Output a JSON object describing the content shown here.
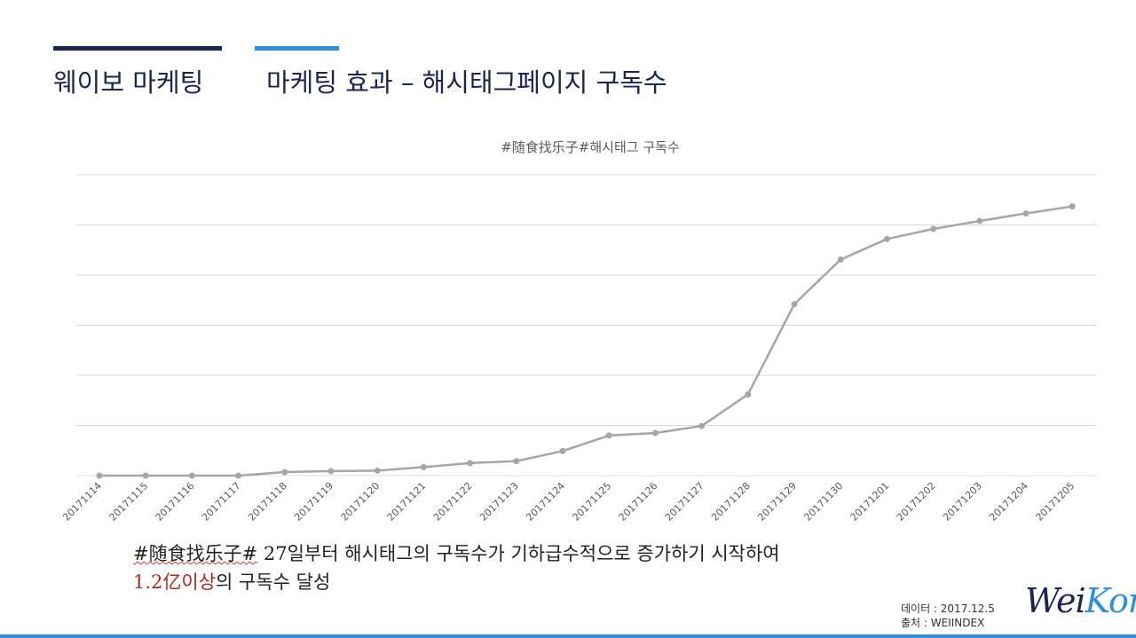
{
  "header": {
    "section_title": "웨이보 마케팅",
    "slide_title": "마케팅 효과 – 해시태그페이지 구독수"
  },
  "chart_data": {
    "type": "line",
    "title": "#随食找乐子#해시태그 구독수",
    "xlabel": "",
    "ylabel": "",
    "grid": true,
    "categories": [
      "20171114",
      "20171115",
      "20171116",
      "20171117",
      "20171118",
      "20171119",
      "20171120",
      "20171121",
      "20171122",
      "20171123",
      "20171124",
      "20171125",
      "20171126",
      "20171127",
      "20171128",
      "20171129",
      "20171130",
      "20171201",
      "20171202",
      "20171203",
      "20171204",
      "20171205"
    ],
    "series": [
      {
        "name": "구독수",
        "color": "#a6a6a6",
        "values": [
          0,
          0,
          0,
          0,
          0.07,
          0.09,
          0.1,
          0.17,
          0.25,
          0.29,
          0.49,
          0.8,
          0.85,
          0.99,
          1.62,
          3.42,
          4.31,
          4.72,
          4.92,
          5.08,
          5.23,
          5.37
        ]
      }
    ],
    "ylim": [
      0,
      6
    ]
  },
  "caption": {
    "line1_hashtag": "#随食找乐子#",
    "line1_rest": " 27일부터 해시태그의 구독수가 기하급수적으로 증가하기 시작하여",
    "line2_highlight": "1.2亿이상",
    "line2_rest": "의 구독수 달성"
  },
  "source": {
    "data_date": "데이터 : 2017.12.5",
    "origin": "출처 : WEIINDEX"
  },
  "logo": {
    "part1": "Wei",
    "part2": "Korea"
  },
  "colors": {
    "navy": "#1b2452",
    "accent_blue": "#2f8fd8",
    "line": "#a6a6a6",
    "grid": "#d9d9d9",
    "highlight_red": "#b3261e"
  }
}
